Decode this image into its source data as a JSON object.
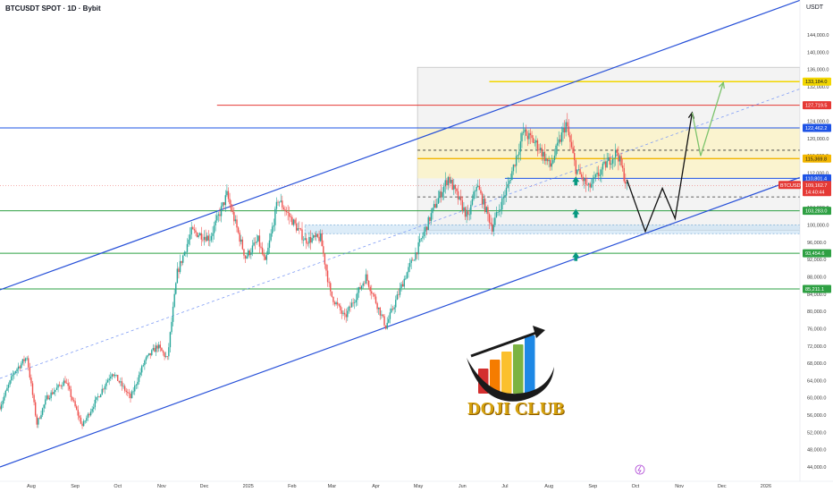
{
  "header": {
    "symbol_title": "BTCUSDT SPOT · 1D · Bybit",
    "currency": "USDT"
  },
  "logo": {
    "text": "DOJI CLUB",
    "bar_colors": [
      "#d32f2f",
      "#f57c00",
      "#fbc02d",
      "#7cb342",
      "#1e88e5"
    ]
  },
  "chart_data": {
    "type": "candlestick",
    "title": "BTCUSDT SPOT · 1D · Bybit",
    "yunit": "USDT",
    "ylim": [
      44000,
      148000
    ],
    "y_ticks": [
      44000,
      48000,
      52000,
      56000,
      60000,
      64000,
      68000,
      72000,
      76000,
      80000,
      84000,
      88000,
      92000,
      96000,
      100000,
      104000,
      108000,
      112000,
      116000,
      120000,
      124000,
      128000,
      132000,
      136000,
      140000,
      144000
    ],
    "y_tick_labels": [
      "44,000.0",
      "48,000.0",
      "52,000.0",
      "56,000.0",
      "60,000.0",
      "64,000.0",
      "68,000.0",
      "72,000.0",
      "76,000.0",
      "80,000.0",
      "84,000.0",
      "88,000.0",
      "92,000.0",
      "96,000.0",
      "100,000.0",
      "104,000.0",
      "108,000.0",
      "112,000.0",
      "116,000.0",
      "120,000.0",
      "124,000.0",
      "128,000.0",
      "132,000.0",
      "136,000.0",
      "140,000.0",
      "144,000.0"
    ],
    "x_ticks": [
      {
        "label": "Aug",
        "date": "2024-08-01"
      },
      {
        "label": "Sep",
        "date": "2024-09-01"
      },
      {
        "label": "Oct",
        "date": "2024-10-01"
      },
      {
        "label": "Nov",
        "date": "2024-11-01"
      },
      {
        "label": "Dec",
        "date": "2024-12-01"
      },
      {
        "label": "2025",
        "date": "2025-01-01"
      },
      {
        "label": "Feb",
        "date": "2025-02-01"
      },
      {
        "label": "Mar",
        "date": "2025-03-01"
      },
      {
        "label": "Apr",
        "date": "2025-04-01"
      },
      {
        "label": "May",
        "date": "2025-05-01"
      },
      {
        "label": "Jun",
        "date": "2025-06-01"
      },
      {
        "label": "Jul",
        "date": "2025-07-01"
      },
      {
        "label": "Aug",
        "date": "2025-08-01"
      },
      {
        "label": "Sep",
        "date": "2025-09-01"
      },
      {
        "label": "Oct",
        "date": "2025-10-01"
      },
      {
        "label": "Nov",
        "date": "2025-11-01"
      },
      {
        "label": "Dec",
        "date": "2025-12-01"
      },
      {
        "label": "2026",
        "date": "2026-01-01"
      }
    ],
    "x_start": "2024-07-10",
    "x_end": "2026-01-25",
    "price_path": [
      [
        "2024-07-10",
        58000
      ],
      [
        "2024-07-20",
        66000
      ],
      [
        "2024-07-29",
        69500
      ],
      [
        "2024-08-05",
        54000
      ],
      [
        "2024-08-12",
        60000
      ],
      [
        "2024-08-25",
        64000
      ],
      [
        "2024-09-06",
        53500
      ],
      [
        "2024-09-15",
        59000
      ],
      [
        "2024-09-27",
        66000
      ],
      [
        "2024-10-10",
        60000
      ],
      [
        "2024-10-20",
        68500
      ],
      [
        "2024-10-29",
        72000
      ],
      [
        "2024-11-05",
        69000
      ],
      [
        "2024-11-12",
        89000
      ],
      [
        "2024-11-22",
        98500
      ],
      [
        "2024-12-05",
        97000
      ],
      [
        "2024-12-17",
        107000
      ],
      [
        "2024-12-30",
        92500
      ],
      [
        "2025-01-08",
        96500
      ],
      [
        "2025-01-13",
        91000
      ],
      [
        "2025-01-22",
        106000
      ],
      [
        "2025-02-01",
        101000
      ],
      [
        "2025-02-10",
        96500
      ],
      [
        "2025-02-21",
        97000
      ],
      [
        "2025-02-28",
        84000
      ],
      [
        "2025-03-10",
        78500
      ],
      [
        "2025-03-25",
        88000
      ],
      [
        "2025-04-08",
        76500
      ],
      [
        "2025-04-21",
        87500
      ],
      [
        "2025-05-01",
        95000
      ],
      [
        "2025-05-12",
        104000
      ],
      [
        "2025-05-22",
        111000
      ],
      [
        "2025-06-05",
        101500
      ],
      [
        "2025-06-11",
        109500
      ],
      [
        "2025-06-22",
        99500
      ],
      [
        "2025-07-03",
        109000
      ],
      [
        "2025-07-14",
        121500
      ],
      [
        "2025-07-24",
        118500
      ],
      [
        "2025-08-02",
        113500
      ],
      [
        "2025-08-13",
        123500
      ],
      [
        "2025-08-20",
        113000
      ],
      [
        "2025-08-29",
        108500
      ],
      [
        "2025-09-10",
        114000
      ],
      [
        "2025-09-18",
        117000
      ],
      [
        "2025-09-25",
        109000
      ]
    ],
    "horizontal_lines": [
      {
        "price": 133184,
        "label": "133,184.0",
        "color": "#f2d600",
        "tag_text_color": "#131722"
      },
      {
        "price": 127719.5,
        "label": "127,719.5",
        "color": "#e53935",
        "tag_text_color": "#ffffff"
      },
      {
        "price": 122462.2,
        "label": "122,462.2",
        "color": "#1e53e5",
        "tag_text_color": "#ffffff"
      },
      {
        "price": 115369.8,
        "label": "115,369.8",
        "color": "#f2b600",
        "tag_text_color": "#131722"
      },
      {
        "price": 110801.4,
        "label": "110,801.4",
        "color": "#1e53e5",
        "tag_text_color": "#ffffff"
      },
      {
        "price": 103283,
        "label": "103,283.0",
        "color": "#2ea043",
        "tag_text_color": "#ffffff"
      },
      {
        "price": 93454.6,
        "label": "93,454.6",
        "color": "#2ea043",
        "tag_text_color": "#ffffff"
      },
      {
        "price": 85211.1,
        "label": "85,211.1",
        "color": "#2ea043",
        "tag_text_color": "#ffffff"
      }
    ],
    "last_price": {
      "symbol": "BTCUSDT",
      "price": "109,162.7",
      "countdown": "14:40:44",
      "value": 109162.7,
      "color": "#e53935"
    },
    "channel_upper": [
      [
        "2024-07-10",
        85000
      ],
      [
        "2026-01-25",
        152000
      ]
    ],
    "channel_lower": [
      [
        "2024-07-10",
        44000
      ],
      [
        "2026-01-25",
        111000
      ]
    ],
    "channel_mid": [
      [
        "2024-07-10",
        64500
      ],
      [
        "2026-01-25",
        131500
      ]
    ],
    "projection_black": [
      [
        "2025-09-25",
        110500
      ],
      [
        "2025-10-08",
        98500
      ],
      [
        "2025-10-20",
        108500
      ],
      [
        "2025-10-29",
        101500
      ],
      [
        "2025-11-10",
        126000
      ]
    ],
    "projection_green": [
      [
        "2025-11-10",
        126000
      ],
      [
        "2025-11-16",
        116000
      ],
      [
        "2025-12-02",
        133000
      ]
    ],
    "support_arrows": [
      [
        "2025-08-20",
        110000
      ],
      [
        "2025-08-20",
        102500
      ],
      [
        "2025-08-20",
        92500
      ]
    ]
  }
}
